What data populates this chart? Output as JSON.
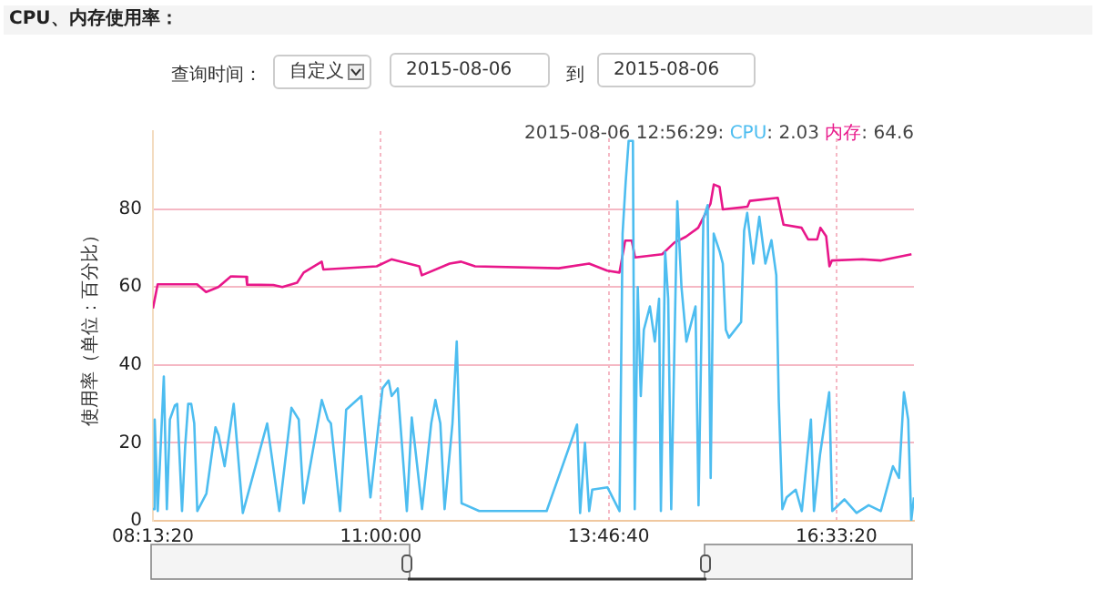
{
  "chart_data": {
    "type": "line",
    "title": "CPU、内存使用率：",
    "ylabel": "使用率（单位：百分比）",
    "annotations": [
      "查询时间：",
      "自定义",
      "2015-08-06",
      "到",
      "2015-08-06",
      "2015-08-06 12:56:29:",
      ": 2.03",
      ": 64.6"
    ],
    "xlim": [
      8.222222,
      17.5
    ],
    "xticks": [
      {
        "value": 8.222222,
        "label": "08:13:20"
      },
      {
        "value": 11,
        "label": "11:00:00"
      },
      {
        "value": 13.777778,
        "label": "13:46:40"
      },
      {
        "value": 16.555556,
        "label": "16:33:20"
      }
    ],
    "ylim": [
      0,
      100
    ],
    "yticks": [
      0,
      20,
      40,
      60,
      80
    ],
    "grid": true,
    "legend": false,
    "marker": "none",
    "series": [
      {
        "name": "CPU",
        "color": "#4dbdf0",
        "x": [
          8.222222,
          8.244,
          8.281,
          8.355,
          8.392,
          8.429,
          8.489,
          8.518,
          8.577,
          8.615,
          8.652,
          8.689,
          8.726,
          8.763,
          8.874,
          8.985,
          9.022,
          9.096,
          9.207,
          9.318,
          9.615,
          9.763,
          9.911,
          10.0,
          10.059,
          10.281,
          10.355,
          10.392,
          10.504,
          10.578,
          10.763,
          10.874,
          11.022,
          11.096,
          11.133,
          11.207,
          11.318,
          11.378,
          11.503,
          11.615,
          11.666,
          11.726,
          11.778,
          11.874,
          11.926,
          11.985,
          12.2,
          12.6,
          13.022,
          13.393,
          13.43,
          13.489,
          13.541,
          13.578,
          13.763,
          13.911,
          13.948,
          13.985,
          14.022,
          14.074,
          14.096,
          14.133,
          14.17,
          14.207,
          14.281,
          14.341,
          14.393,
          14.415,
          14.467,
          14.504,
          14.541,
          14.615,
          14.666,
          14.726,
          14.837,
          14.874,
          14.933,
          14.985,
          15.022,
          15.059,
          15.133,
          15.17,
          15.207,
          15.244,
          15.393,
          15.43,
          15.467,
          15.541,
          15.615,
          15.689,
          15.763,
          15.822,
          15.852,
          15.896,
          15.948,
          16.059,
          16.133,
          16.244,
          16.281,
          16.355,
          16.467,
          16.504,
          16.652,
          16.8,
          16.948,
          17.096,
          17.244,
          17.318,
          17.378,
          17.43,
          17.467,
          17.5
        ],
        "values": [
          3,
          26,
          2.5,
          37,
          3,
          26,
          29.6,
          30,
          2.5,
          19,
          30,
          30,
          25,
          2.5,
          7,
          24,
          22,
          14,
          30,
          2,
          25,
          2.5,
          29,
          26,
          4.5,
          31,
          26,
          25,
          2.5,
          28.5,
          32,
          6,
          34,
          36,
          32,
          34,
          2.5,
          26.5,
          3,
          25,
          31,
          25,
          3,
          25,
          46,
          4.5,
          2.5,
          2.5,
          2.5,
          24.7,
          2,
          20,
          2.5,
          8,
          8.6,
          2.5,
          73.7,
          86.7,
          97.5,
          97.5,
          3,
          60,
          32,
          49,
          55,
          46,
          57,
          2.5,
          69,
          57,
          3,
          82,
          60,
          46,
          55,
          4,
          77.5,
          81,
          11,
          73.7,
          69,
          66,
          49,
          47,
          51,
          74.5,
          79,
          66,
          78,
          66,
          72,
          63,
          31,
          3,
          6,
          8,
          2.5,
          26,
          2.5,
          17,
          33,
          2.5,
          5.5,
          2,
          4,
          2.5,
          14,
          11,
          33,
          26,
          0,
          6
        ]
      },
      {
        "name": "内存",
        "color": "#e8178a",
        "x": [
          8.222222,
          8.28,
          8.76,
          8.87,
          9.02,
          9.17,
          9.36,
          9.37,
          9.69,
          9.8,
          9.98,
          10.06,
          10.28,
          10.3,
          10.95,
          11.13,
          11.47,
          11.5,
          11.84,
          11.98,
          12.15,
          13.17,
          13.54,
          13.76,
          13.91,
          13.98,
          14.06,
          14.1,
          14.43,
          14.58,
          14.72,
          14.87,
          15.02,
          15.06,
          15.13,
          15.17,
          15.47,
          15.5,
          15.84,
          15.91,
          16.13,
          16.21,
          16.32,
          16.36,
          16.43,
          16.47,
          16.5,
          16.87,
          17.1,
          17.47
        ],
        "values": [
          54.5,
          60.7,
          60.7,
          58.7,
          60,
          62.7,
          62.6,
          60.6,
          60.5,
          60,
          61.1,
          63.7,
          66.5,
          64.5,
          65.3,
          67.1,
          65.3,
          63,
          66,
          66.5,
          65.3,
          64.8,
          66,
          64.2,
          63.7,
          71.9,
          71.9,
          67.6,
          68.4,
          71.4,
          72.9,
          75.2,
          81.4,
          86.3,
          85.7,
          79.9,
          80.6,
          82.1,
          82.9,
          76,
          75.2,
          72.2,
          72.2,
          75.2,
          73,
          65.3,
          66.8,
          67.1,
          66.8,
          68.4
        ]
      }
    ]
  }
}
